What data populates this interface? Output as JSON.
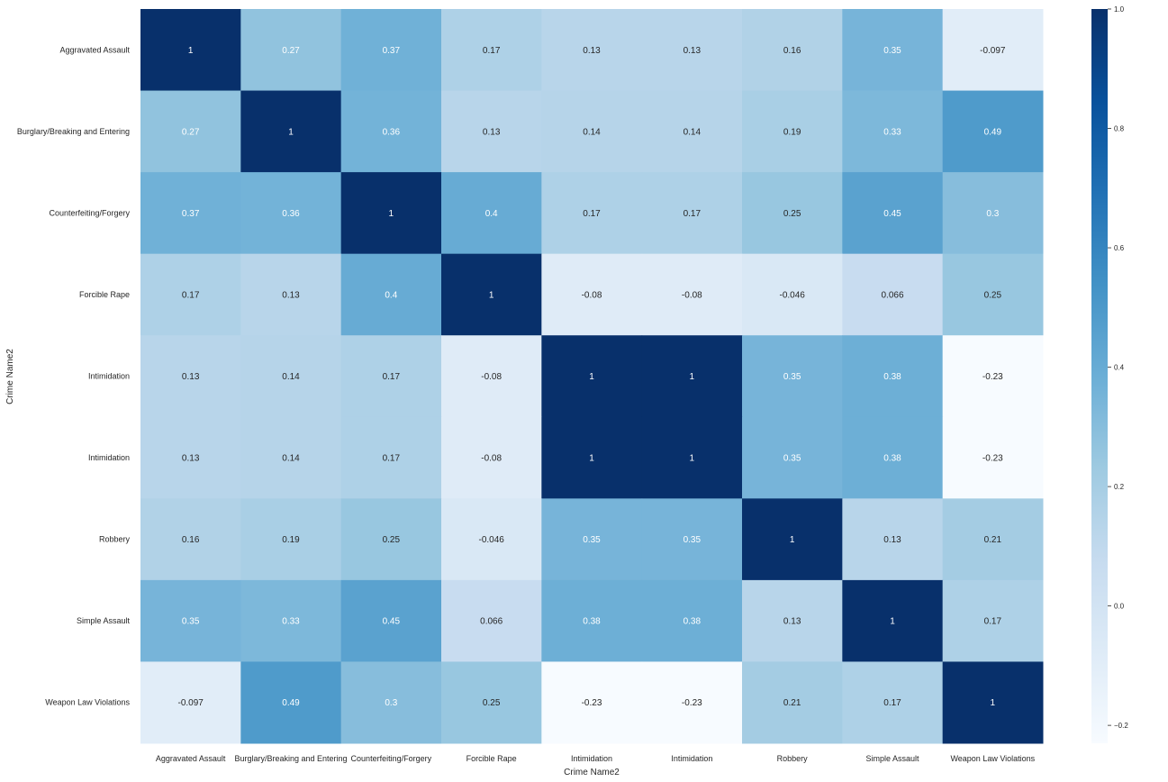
{
  "chart_data": {
    "type": "heatmap",
    "title": "",
    "xlabel": "Crime Name2",
    "ylabel": "Crime Name2",
    "x_categories": [
      "Aggravated Assault",
      "Burglary/Breaking and Entering",
      "Counterfeiting/Forgery",
      "Forcible Rape",
      "Intimidation",
      "Intimidation",
      "Robbery",
      "Simple Assault",
      "Weapon Law Violations"
    ],
    "y_categories": [
      "Aggravated Assault",
      "Burglary/Breaking and Entering",
      "Counterfeiting/Forgery",
      "Forcible Rape",
      "Intimidation",
      "Intimidation",
      "Robbery",
      "Simple Assault",
      "Weapon Law Violations"
    ],
    "values": [
      [
        1,
        0.27,
        0.37,
        0.17,
        0.13,
        0.13,
        0.16,
        0.35,
        -0.097
      ],
      [
        0.27,
        1,
        0.36,
        0.13,
        0.14,
        0.14,
        0.19,
        0.33,
        0.49
      ],
      [
        0.37,
        0.36,
        1,
        0.4,
        0.17,
        0.17,
        0.25,
        0.45,
        0.3
      ],
      [
        0.17,
        0.13,
        0.4,
        1,
        -0.08,
        -0.08,
        -0.046,
        0.066,
        0.25
      ],
      [
        0.13,
        0.14,
        0.17,
        -0.08,
        1,
        1,
        0.35,
        0.38,
        -0.23
      ],
      [
        0.13,
        0.14,
        0.17,
        -0.08,
        1,
        1,
        0.35,
        0.38,
        -0.23
      ],
      [
        0.16,
        0.19,
        0.25,
        -0.046,
        0.35,
        0.35,
        1,
        0.13,
        0.21
      ],
      [
        0.35,
        0.33,
        0.45,
        0.066,
        0.38,
        0.38,
        0.13,
        1,
        0.17
      ],
      [
        -0.097,
        0.49,
        0.3,
        0.25,
        -0.23,
        -0.23,
        0.21,
        0.17,
        1
      ]
    ],
    "colormap": "Blues",
    "vmin": -0.23,
    "vmax": 1,
    "colorbar_ticks": [
      1.0,
      0.8,
      0.6,
      0.4,
      0.2,
      0.0,
      -0.2
    ],
    "colorbar_tick_labels": [
      "1.0",
      "0.8",
      "0.6",
      "0.4",
      "0.2",
      "0.0",
      "−0.2"
    ]
  }
}
